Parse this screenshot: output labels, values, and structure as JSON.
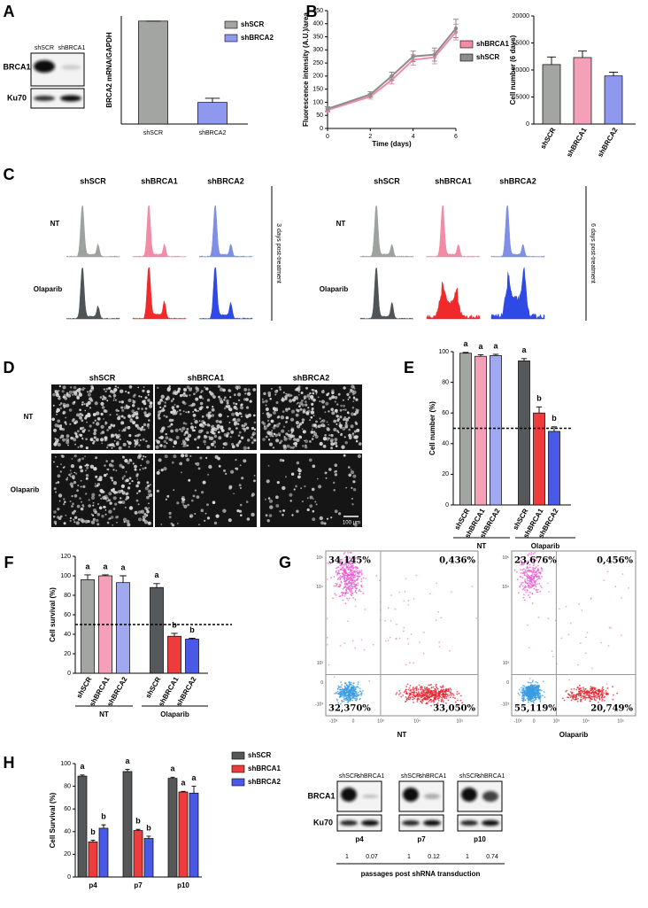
{
  "panel_labels": [
    "A",
    "B",
    "C",
    "D",
    "E",
    "F",
    "G",
    "H"
  ],
  "blot_a": {
    "lanes": [
      "shSCR",
      "shBRCA1"
    ],
    "rows": [
      "BRCA1",
      "Ku70"
    ]
  },
  "flow_histograms": {
    "columns": [
      "shSCR",
      "shBRCA1",
      "shBRCA2"
    ],
    "rows": [
      "NT",
      "Olaparib"
    ],
    "timepoints": [
      "3 days post-treatment",
      "6 days post-treatment"
    ]
  },
  "micrographs": {
    "columns": [
      "shSCR",
      "shBRCA1",
      "shBRCA2"
    ],
    "rows": [
      "NT",
      "Olaparib"
    ],
    "scale_bar": "100 µm"
  },
  "flow_dotplots": {
    "x_ticks": [
      "-10³",
      "0",
      "10³",
      "10⁴",
      "10⁵"
    ],
    "y_ticks": [
      "10⁵",
      "10⁴",
      "10³",
      "0",
      "-10³"
    ],
    "plots": [
      {
        "label": "NT",
        "quadrants": [
          "34,145%",
          "0,436%",
          "32,370%",
          "33,050%"
        ]
      },
      {
        "label": "Olaparib",
        "quadrants": [
          "23,676%",
          "0,456%",
          "55,119%",
          "20,749%"
        ]
      }
    ]
  },
  "blot_h": {
    "lanes": [
      "shSCR",
      "shBRCA1"
    ],
    "rows": [
      "BRCA1",
      "Ku70"
    ],
    "passages": [
      {
        "label": "p4",
        "ratios": [
          1,
          0.07
        ]
      },
      {
        "label": "p7",
        "ratios": [
          1,
          0.12
        ]
      },
      {
        "label": "p10",
        "ratios": [
          1,
          0.74
        ]
      }
    ],
    "caption": "passages post shRNA transduction"
  },
  "chart_data": [
    {
      "type": "bar",
      "ylabel": "BRCA2 mRNA/GAPDH",
      "categories": [
        "shSCR",
        "shBRCA2"
      ],
      "values": [
        1.0,
        0.21
      ],
      "errors": [
        0,
        0.04
      ],
      "colors": [
        "#a2a5a1",
        "#8e98ee"
      ],
      "ylim": [
        0,
        1.05
      ],
      "legend": true
    },
    {
      "type": "line",
      "ylabel": "Fluorescence intensity (A.U.)/area",
      "xlabel": "Time (days)",
      "x": [
        0,
        2,
        3,
        4,
        5,
        6
      ],
      "series": [
        {
          "name": "shBRCA1",
          "color": "#f28ba6",
          "values": [
            70,
            122,
            185,
            262,
            272,
            368
          ],
          "errors": [
            8,
            10,
            15,
            20,
            25,
            30
          ]
        },
        {
          "name": "shSCR",
          "color": "#8c8c8c",
          "values": [
            75,
            130,
            200,
            275,
            282,
            382
          ],
          "errors": [
            8,
            10,
            15,
            20,
            25,
            35
          ]
        }
      ],
      "xlim": [
        0,
        6
      ],
      "xticks": [
        0,
        2,
        4,
        6
      ],
      "ylim": [
        0,
        450
      ],
      "yticks": [
        0,
        50,
        100,
        150,
        200,
        250,
        300,
        350,
        400,
        450
      ],
      "legend": true
    },
    {
      "type": "bar",
      "ylabel": "Cell number (6 days)",
      "categories": [
        "shSCR",
        "shBRCA1",
        "shBRCA2"
      ],
      "values": [
        11000,
        12300,
        8900
      ],
      "errors": [
        1400,
        1200,
        700
      ],
      "colors": [
        "#a2a5a1",
        "#f4a0b9",
        "#8e98ee"
      ],
      "ylim": [
        0,
        20000
      ],
      "yticks": [
        0,
        5000,
        10000,
        15000,
        20000
      ]
    },
    {
      "type": "bar",
      "ylabel": "Cell number (%)",
      "categories": [
        "shSCR",
        "shBRCA1",
        "shBRCA2",
        "shSCR",
        "shBRCA1",
        "shBRCA2"
      ],
      "values": [
        99,
        97,
        97.5,
        94,
        60,
        48
      ],
      "errors": [
        0.5,
        1,
        0.8,
        1.5,
        4,
        3
      ],
      "annotations": [
        "a",
        "a",
        "a",
        "a",
        "b",
        "b"
      ],
      "colors": [
        "#a2a5a1",
        "#f4a0b9",
        "#a0a8f0",
        "#55595b",
        "#ee3b3b",
        "#4a5ae6"
      ],
      "ylim": [
        0,
        100
      ],
      "yticks": [
        0,
        20,
        40,
        60,
        80,
        100
      ],
      "reference_line": 50,
      "groups": [
        "NT",
        "Olaparib"
      ]
    },
    {
      "type": "bar",
      "ylabel": "Cell survival (%)",
      "categories": [
        "shSCR",
        "shBRCA1",
        "shBRCA2",
        "shSCR",
        "shBRCA1",
        "shBRCA2"
      ],
      "values": [
        96,
        100,
        93,
        88,
        38,
        35
      ],
      "errors": [
        5,
        1,
        7,
        4,
        3,
        1
      ],
      "annotations": [
        "a",
        "a",
        "a",
        "a",
        "b",
        "b"
      ],
      "colors": [
        "#a2a5a1",
        "#f4a0b9",
        "#a0a8f0",
        "#55595b",
        "#ee3b3b",
        "#4a5ae6"
      ],
      "ylim": [
        0,
        120
      ],
      "yticks": [
        0,
        20,
        40,
        60,
        80,
        100,
        120
      ],
      "reference_line": 50,
      "groups": [
        "NT",
        "Olaparib"
      ]
    },
    {
      "type": "bar",
      "ylabel": "Cell Survival (%)",
      "categories": [
        "p4",
        "p7",
        "p10"
      ],
      "series": [
        {
          "name": "shSCR",
          "color": "#555759",
          "values": [
            89,
            93,
            87
          ],
          "errors": [
            1,
            2,
            1
          ],
          "annotations": [
            "a",
            "a",
            "a"
          ]
        },
        {
          "name": "shBRCA1",
          "color": "#ee3b3b",
          "values": [
            31,
            41,
            75
          ],
          "errors": [
            1.5,
            1,
            0.5
          ],
          "annotations": [
            "b",
            "b",
            "a"
          ]
        },
        {
          "name": "shBRCA2",
          "color": "#4a5ae6",
          "values": [
            43,
            34,
            74
          ],
          "errors": [
            3,
            2,
            6
          ],
          "annotations": [
            "b",
            "b",
            "a"
          ]
        }
      ],
      "ylim": [
        0,
        100
      ],
      "yticks": [
        0,
        20,
        40,
        60,
        80,
        100
      ],
      "legend": true
    }
  ]
}
